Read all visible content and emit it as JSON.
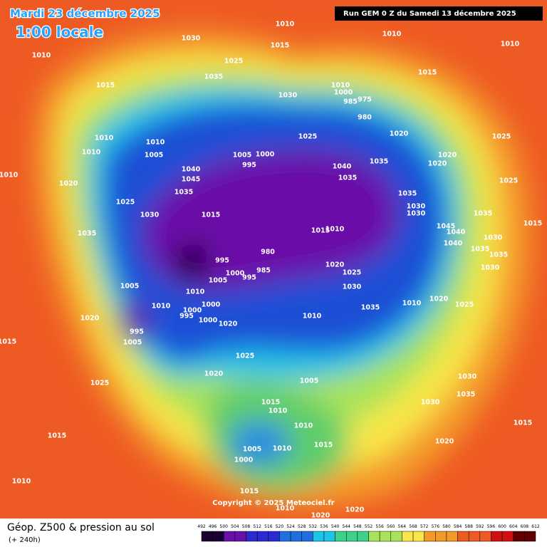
{
  "header": {
    "date": "Mardi 23 décembre 2025",
    "time": "1:00 locale",
    "run": "Run GEM 0 Z du Samedi 13 décembre 2025"
  },
  "map": {
    "pressure_labels": [
      "1010",
      "1030",
      "1010",
      "1010",
      "1010",
      "1025",
      "1015",
      "1035",
      "1015",
      "1015",
      "1030",
      "1010",
      "1000",
      "975",
      "985",
      "980",
      "1010",
      "1010",
      "1005",
      "1010",
      "1025",
      "1020",
      "1025",
      "1005",
      "1000",
      "995",
      "1040",
      "1045",
      "1020",
      "1020",
      "1040",
      "1035",
      "1035",
      "1010",
      "1020",
      "1035",
      "1025",
      "1025",
      "1030",
      "1015",
      "1035",
      "1030",
      "1030",
      "1035",
      "1015",
      "1045",
      "1040",
      "1035",
      "1015",
      "1010",
      "1030",
      "1040",
      "980",
      "995",
      "1035",
      "1035",
      "1030",
      "1020",
      "1025",
      "1000",
      "985",
      "995",
      "1005",
      "1005",
      "1030",
      "1010",
      "1010",
      "1020",
      "1025",
      "1035",
      "1010",
      "1000",
      "1000",
      "995",
      "1010",
      "1020",
      "1000",
      "1020",
      "995",
      "1005",
      "1015",
      "1025",
      "1020",
      "1030",
      "1005",
      "1025",
      "1035",
      "1015",
      "1030",
      "1010",
      "1010",
      "1015",
      "1015",
      "1020",
      "1015",
      "1005",
      "1010",
      "1000",
      "1010",
      "1015",
      "1010",
      "1020",
      "1020"
    ],
    "copyright": "Copyright © 2025 Meteociel.fr"
  },
  "footer": {
    "title": "Géop. Z500 & pression au sol",
    "subtitle": "(+ 240h)"
  },
  "legend": {
    "values": [
      492,
      496,
      500,
      504,
      508,
      512,
      516,
      520,
      524,
      528,
      532,
      536,
      540,
      544,
      548,
      552,
      556,
      560,
      564,
      568,
      572,
      576,
      580,
      584,
      588,
      592,
      596,
      600,
      604,
      608,
      612
    ]
  }
}
